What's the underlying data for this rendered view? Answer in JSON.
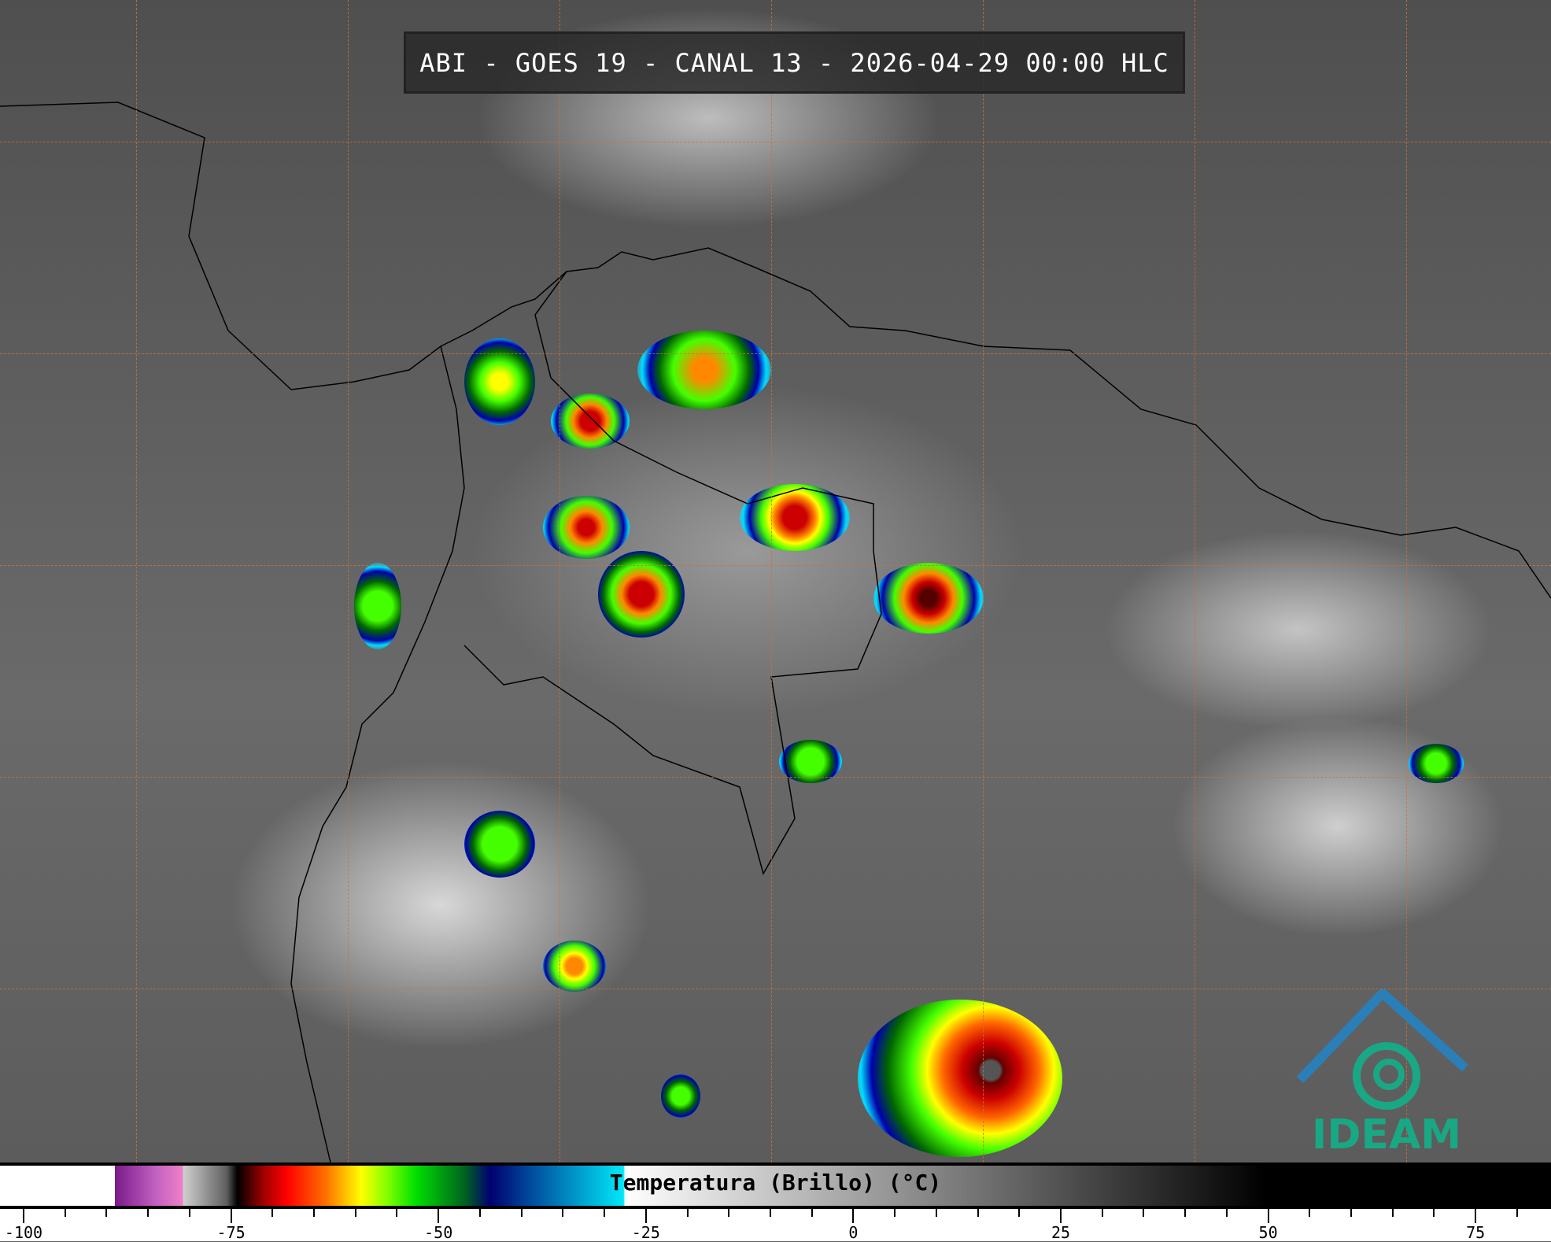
{
  "title": "ABI - GOES 19 - CANAL 13 - 2026-04-29 00:00 HLC",
  "logo_text": "IDEAM",
  "colorbar": {
    "label": "Temperatura (Brillo) (°C)",
    "unit": "°C",
    "range": [
      -100,
      85
    ],
    "ticks": [
      "-100",
      "-75",
      "-50",
      "-25",
      "0",
      "25",
      "50",
      "75"
    ],
    "tick_values": [
      -100,
      -75,
      -50,
      -25,
      0,
      25,
      50,
      75
    ],
    "minor_tick_step": 5
  },
  "colors": {
    "gridline": "#c8743a",
    "logo": "#19a884",
    "title_bg": "#282828"
  }
}
